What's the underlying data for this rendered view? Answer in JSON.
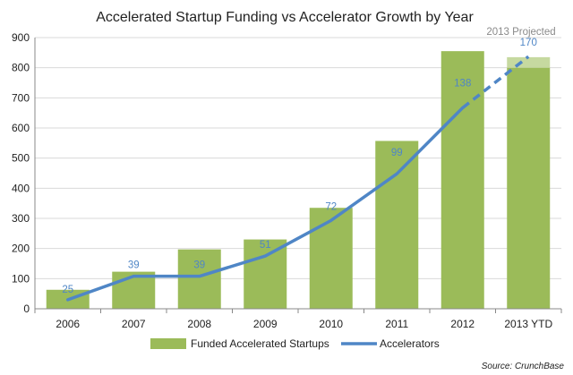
{
  "chart_data": {
    "type": "bar",
    "title": "Accelerated Startup Funding vs Accelerator Growth by Year",
    "categories": [
      "2006",
      "2007",
      "2008",
      "2009",
      "2010",
      "2011",
      "2012",
      "2013 YTD"
    ],
    "ylim": [
      0,
      900
    ],
    "yticks": [
      0,
      100,
      200,
      300,
      400,
      500,
      600,
      700,
      800,
      900
    ],
    "grid": true,
    "legend_position": "bottom",
    "series": [
      {
        "name": "Funded Accelerated Startups",
        "kind": "bar",
        "color": "#9bbb59",
        "values": [
          63,
          123,
          197,
          230,
          335,
          557,
          855,
          800
        ],
        "projected_extra": [
          null,
          null,
          null,
          null,
          null,
          null,
          null,
          35
        ],
        "projected_color": "#c6d9a0"
      },
      {
        "name": "Accelerators",
        "kind": "line",
        "color": "#4f86c6",
        "axis_values": [
          30,
          108,
          108,
          175,
          293,
          448,
          667,
          837
        ],
        "labels": [
          "25",
          "39",
          "39",
          "51",
          "72",
          "99",
          "138",
          "170"
        ],
        "dashed_from_index": 6
      }
    ],
    "annotation": "2013 Projected",
    "source": "Source: CrunchBase"
  }
}
